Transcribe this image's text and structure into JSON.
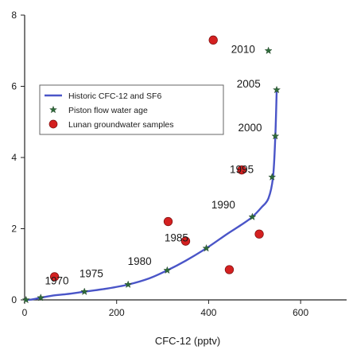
{
  "chart_data": {
    "type": "scatter",
    "title": "",
    "xlabel": "CFC-12 (pptv)",
    "ylabel": "",
    "xlim": [
      0,
      700
    ],
    "ylim": [
      0,
      8
    ],
    "x_ticks": [
      0,
      200,
      400,
      600
    ],
    "y_ticks": [
      0,
      2,
      4,
      6,
      8
    ],
    "grid": false,
    "legend_position": "center-left",
    "legend": [
      {
        "label": "Historic CFC-12 and SF6",
        "marker": "line",
        "color": "#4a55c8"
      },
      {
        "label": "Piston flow water age",
        "marker": "star",
        "color": "#2e6b3a"
      },
      {
        "label": "Lunan groundwater samples",
        "marker": "circle",
        "color": "#d42020"
      }
    ],
    "series": [
      {
        "name": "Historic CFC-12 and SF6",
        "kind": "line",
        "color": "#4a55c8",
        "x": [
          0,
          15,
          35,
          60,
          90,
          130,
          180,
          225,
          270,
          310,
          350,
          395,
          440,
          470,
          495,
          515,
          530,
          540,
          545,
          548
        ],
        "y": [
          0,
          0.01,
          0.06,
          0.12,
          0.16,
          0.23,
          0.32,
          0.43,
          0.6,
          0.83,
          1.1,
          1.45,
          1.85,
          2.1,
          2.33,
          2.6,
          2.85,
          3.45,
          4.6,
          5.9
        ]
      },
      {
        "name": "Piston flow water age",
        "kind": "star",
        "color": "#2e6b3a",
        "x": [
          3,
          35,
          130,
          225,
          310,
          395,
          495,
          538,
          545,
          548,
          530
        ],
        "y": [
          0,
          0.06,
          0.23,
          0.43,
          0.83,
          1.45,
          2.33,
          3.45,
          4.6,
          5.9,
          7.0
        ]
      },
      {
        "name": "Lunan groundwater samples",
        "kind": "circle",
        "color": "#d42020",
        "x": [
          65,
          312,
          350,
          410,
          445,
          472,
          510
        ],
        "y": [
          0.65,
          2.2,
          1.65,
          7.3,
          0.85,
          3.65,
          1.85
        ]
      }
    ],
    "annotations": [
      {
        "text": "1970",
        "x": 70,
        "y": 0.55
      },
      {
        "text": "1975",
        "x": 145,
        "y": 0.75
      },
      {
        "text": "1980",
        "x": 250,
        "y": 1.1
      },
      {
        "text": "1985",
        "x": 330,
        "y": 1.75
      },
      {
        "text": "1990",
        "x": 432,
        "y": 2.68
      },
      {
        "text": "1995",
        "x": 472,
        "y": 3.68
      },
      {
        "text": "2000",
        "x": 490,
        "y": 4.85
      },
      {
        "text": "2005",
        "x": 487,
        "y": 6.08
      },
      {
        "text": "2010",
        "x": 475,
        "y": 7.05
      }
    ]
  }
}
